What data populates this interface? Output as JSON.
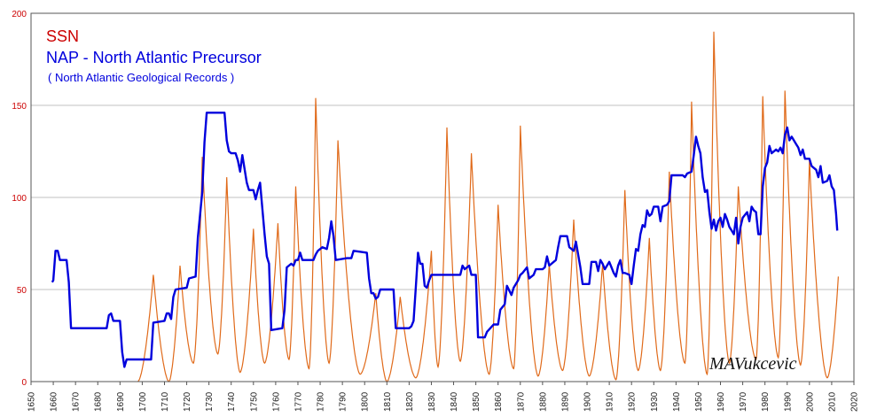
{
  "chart_data": {
    "type": "line",
    "title": "",
    "xlabel": "",
    "ylabel": "",
    "xlim": [
      1650,
      2020
    ],
    "ylim": [
      0,
      200
    ],
    "x_ticks": [
      "1650",
      "1660",
      "1670",
      "1680",
      "1690",
      "1700",
      "1710",
      "1720",
      "1730",
      "1740",
      "1750",
      "1760",
      "1770",
      "1780",
      "1790",
      "1800",
      "1810",
      "1820",
      "1830",
      "1840",
      "1850",
      "1860",
      "1870",
      "1880",
      "1890",
      "1900",
      "1910",
      "1920",
      "1930",
      "1940",
      "1950",
      "1960",
      "1970",
      "1980",
      "1990",
      "2000",
      "2010",
      "2020"
    ],
    "y_ticks": [
      "0",
      "50",
      "100",
      "150",
      "200"
    ],
    "grid": "horizontal",
    "legend": {
      "placement": "top-left",
      "ssn_label": "SSN",
      "nap_label": "NAP - North  Atlantic Precursor",
      "nap_sublabel": "( North Atlantic Geological Records )"
    },
    "annotation": "MAVukcevic",
    "colors": {
      "ssn": "#e06a1a",
      "nap": "#0000dd",
      "grid": "#c0c0c0",
      "tick_y": "#cc0000"
    },
    "series": [
      {
        "name": "SSN",
        "peaks": [
          [
            1705,
            58
          ],
          [
            1717,
            63
          ],
          [
            1727,
            122
          ],
          [
            1738,
            111
          ],
          [
            1750,
            83
          ],
          [
            1761,
            86
          ],
          [
            1769,
            106
          ],
          [
            1778,
            154
          ],
          [
            1788,
            131
          ],
          [
            1805,
            48
          ],
          [
            1816,
            46
          ],
          [
            1830,
            71
          ],
          [
            1837,
            138
          ],
          [
            1848,
            124
          ],
          [
            1860,
            96
          ],
          [
            1870,
            139
          ],
          [
            1883,
            64
          ],
          [
            1894,
            88
          ],
          [
            1907,
            64
          ],
          [
            1917,
            104
          ],
          [
            1928,
            78
          ],
          [
            1937,
            114
          ],
          [
            1947,
            152
          ],
          [
            1957,
            190
          ],
          [
            1968,
            106
          ],
          [
            1979,
            155
          ],
          [
            1989,
            158
          ],
          [
            2000,
            120
          ],
          [
            2013,
            57
          ]
        ],
        "minima": [
          [
            1698,
            0
          ],
          [
            1712,
            0
          ],
          [
            1723,
            10
          ],
          [
            1734,
            15
          ],
          [
            1744,
            5
          ],
          [
            1755,
            10
          ],
          [
            1766,
            12
          ],
          [
            1775,
            7
          ],
          [
            1784,
            10
          ],
          [
            1798,
            4
          ],
          [
            1810,
            0
          ],
          [
            1823,
            2
          ],
          [
            1833,
            8
          ],
          [
            1843,
            11
          ],
          [
            1856,
            4
          ],
          [
            1867,
            7
          ],
          [
            1878,
            3
          ],
          [
            1889,
            6
          ],
          [
            1901,
            3
          ],
          [
            1913,
            1
          ],
          [
            1923,
            6
          ],
          [
            1933,
            6
          ],
          [
            1944,
            10
          ],
          [
            1954,
            4
          ],
          [
            1964,
            10
          ],
          [
            1976,
            12
          ],
          [
            1986,
            13
          ],
          [
            1996,
            9
          ],
          [
            2008,
            2
          ]
        ]
      },
      {
        "name": "NAP",
        "points": [
          [
            1659.5,
            54
          ],
          [
            1660,
            55
          ],
          [
            1661,
            71
          ],
          [
            1662,
            71
          ],
          [
            1663,
            66
          ],
          [
            1666,
            66
          ],
          [
            1667,
            54
          ],
          [
            1668,
            29
          ],
          [
            1684,
            29
          ],
          [
            1685,
            36
          ],
          [
            1686,
            37
          ],
          [
            1687,
            33
          ],
          [
            1690,
            33
          ],
          [
            1691,
            16
          ],
          [
            1692,
            8
          ],
          [
            1693,
            12
          ],
          [
            1699,
            12
          ],
          [
            1704,
            12
          ],
          [
            1705,
            32
          ],
          [
            1710,
            33
          ],
          [
            1711,
            37
          ],
          [
            1712,
            37
          ],
          [
            1713,
            34
          ],
          [
            1714,
            46
          ],
          [
            1715,
            50
          ],
          [
            1720,
            51
          ],
          [
            1721,
            56
          ],
          [
            1724,
            57
          ],
          [
            1725,
            78
          ],
          [
            1727,
            103
          ],
          [
            1728,
            130
          ],
          [
            1729,
            146
          ],
          [
            1737,
            146
          ],
          [
            1738,
            131
          ],
          [
            1739,
            125
          ],
          [
            1740,
            124
          ],
          [
            1742,
            124
          ],
          [
            1743,
            120
          ],
          [
            1744,
            114
          ],
          [
            1745,
            123
          ],
          [
            1747,
            108
          ],
          [
            1748,
            104
          ],
          [
            1750,
            104
          ],
          [
            1751,
            99
          ],
          [
            1752,
            104
          ],
          [
            1753,
            108
          ],
          [
            1755,
            80
          ],
          [
            1756,
            68
          ],
          [
            1757,
            64
          ],
          [
            1758,
            28
          ],
          [
            1763,
            29
          ],
          [
            1764,
            39
          ],
          [
            1765,
            62
          ],
          [
            1767,
            64
          ],
          [
            1768,
            63
          ],
          [
            1769,
            66
          ],
          [
            1770,
            66
          ],
          [
            1771,
            70
          ],
          [
            1772,
            66
          ],
          [
            1777,
            66
          ],
          [
            1778,
            69
          ],
          [
            1779,
            71
          ],
          [
            1781,
            73
          ],
          [
            1783,
            72
          ],
          [
            1784,
            78
          ],
          [
            1785,
            87
          ],
          [
            1786,
            79
          ],
          [
            1787,
            66
          ],
          [
            1792,
            67
          ],
          [
            1794,
            67
          ],
          [
            1795,
            71
          ],
          [
            1801,
            70
          ],
          [
            1802,
            56
          ],
          [
            1803,
            48
          ],
          [
            1804,
            48
          ],
          [
            1805,
            45
          ],
          [
            1806,
            46
          ],
          [
            1807,
            50
          ],
          [
            1813,
            50
          ],
          [
            1814,
            29
          ],
          [
            1820,
            29
          ],
          [
            1821,
            30
          ],
          [
            1822,
            33
          ],
          [
            1823,
            51
          ],
          [
            1824,
            70
          ],
          [
            1825,
            64
          ],
          [
            1826,
            64
          ],
          [
            1827,
            52
          ],
          [
            1828,
            51
          ],
          [
            1829,
            55
          ],
          [
            1830,
            58
          ],
          [
            1843,
            58
          ],
          [
            1844,
            63
          ],
          [
            1845,
            61
          ],
          [
            1847,
            63
          ],
          [
            1848,
            58
          ],
          [
            1850,
            58
          ],
          [
            1851,
            24
          ],
          [
            1854,
            24
          ],
          [
            1855,
            27
          ],
          [
            1858,
            31
          ],
          [
            1860,
            31
          ],
          [
            1861,
            39
          ],
          [
            1863,
            42
          ],
          [
            1864,
            52
          ],
          [
            1866,
            47
          ],
          [
            1867,
            51
          ],
          [
            1869,
            55
          ],
          [
            1870,
            58
          ],
          [
            1871,
            59
          ],
          [
            1873,
            62
          ],
          [
            1874,
            56
          ],
          [
            1875,
            57
          ],
          [
            1876,
            58
          ],
          [
            1877,
            61
          ],
          [
            1880,
            61
          ],
          [
            1881,
            62
          ],
          [
            1882,
            68
          ],
          [
            1883,
            63
          ],
          [
            1885,
            65
          ],
          [
            1886,
            66
          ],
          [
            1887,
            73
          ],
          [
            1888,
            79
          ],
          [
            1891,
            79
          ],
          [
            1892,
            73
          ],
          [
            1893,
            72
          ],
          [
            1894,
            71
          ],
          [
            1895,
            76
          ],
          [
            1896,
            69
          ],
          [
            1897,
            62
          ],
          [
            1898,
            53
          ],
          [
            1901,
            53
          ],
          [
            1902,
            65
          ],
          [
            1904,
            65
          ],
          [
            1905,
            60
          ],
          [
            1906,
            66
          ],
          [
            1907,
            64
          ],
          [
            1908,
            61
          ],
          [
            1910,
            65
          ],
          [
            1911,
            62
          ],
          [
            1912,
            59
          ],
          [
            1913,
            57
          ],
          [
            1914,
            63
          ],
          [
            1915,
            66
          ],
          [
            1916,
            59
          ],
          [
            1917,
            59
          ],
          [
            1919,
            58
          ],
          [
            1920,
            53
          ],
          [
            1921,
            63
          ],
          [
            1922,
            72
          ],
          [
            1923,
            71
          ],
          [
            1924,
            80
          ],
          [
            1925,
            85
          ],
          [
            1926,
            84
          ],
          [
            1927,
            93
          ],
          [
            1928,
            90
          ],
          [
            1929,
            91
          ],
          [
            1930,
            95
          ],
          [
            1932,
            95
          ],
          [
            1933,
            87
          ],
          [
            1934,
            95
          ],
          [
            1936,
            96
          ],
          [
            1937,
            98
          ],
          [
            1938,
            112
          ],
          [
            1943,
            112
          ],
          [
            1944,
            111
          ],
          [
            1945,
            113
          ],
          [
            1947,
            114
          ],
          [
            1948,
            123
          ],
          [
            1949,
            133
          ],
          [
            1950,
            128
          ],
          [
            1951,
            124
          ],
          [
            1952,
            111
          ],
          [
            1953,
            103
          ],
          [
            1954,
            104
          ],
          [
            1955,
            92
          ],
          [
            1956,
            83
          ],
          [
            1957,
            88
          ],
          [
            1958,
            82
          ],
          [
            1959,
            87
          ],
          [
            1960,
            89
          ],
          [
            1961,
            84
          ],
          [
            1962,
            91
          ],
          [
            1963,
            88
          ],
          [
            1964,
            84
          ],
          [
            1965,
            82
          ],
          [
            1966,
            80
          ],
          [
            1967,
            89
          ],
          [
            1968,
            75
          ],
          [
            1969,
            84
          ],
          [
            1970,
            89
          ],
          [
            1972,
            92
          ],
          [
            1973,
            87
          ],
          [
            1974,
            95
          ],
          [
            1975,
            93
          ],
          [
            1976,
            92
          ],
          [
            1977,
            80
          ],
          [
            1978,
            80
          ],
          [
            1979,
            106
          ],
          [
            1980,
            116
          ],
          [
            1981,
            119
          ],
          [
            1982,
            128
          ],
          [
            1983,
            124
          ],
          [
            1985,
            126
          ],
          [
            1986,
            125
          ],
          [
            1987,
            127
          ],
          [
            1988,
            124
          ],
          [
            1989,
            134
          ],
          [
            1990,
            138
          ],
          [
            1991,
            131
          ],
          [
            1992,
            133
          ],
          [
            1994,
            129
          ],
          [
            1995,
            127
          ],
          [
            1996,
            123
          ],
          [
            1997,
            126
          ],
          [
            1998,
            121
          ],
          [
            2000,
            121
          ],
          [
            2001,
            117
          ],
          [
            2003,
            115
          ],
          [
            2004,
            111
          ],
          [
            2005,
            117
          ],
          [
            2006,
            108
          ],
          [
            2008,
            109
          ],
          [
            2009,
            112
          ],
          [
            2010,
            106
          ],
          [
            2011,
            104
          ],
          [
            2012,
            91
          ],
          [
            2012.5,
            82
          ]
        ]
      }
    ]
  }
}
